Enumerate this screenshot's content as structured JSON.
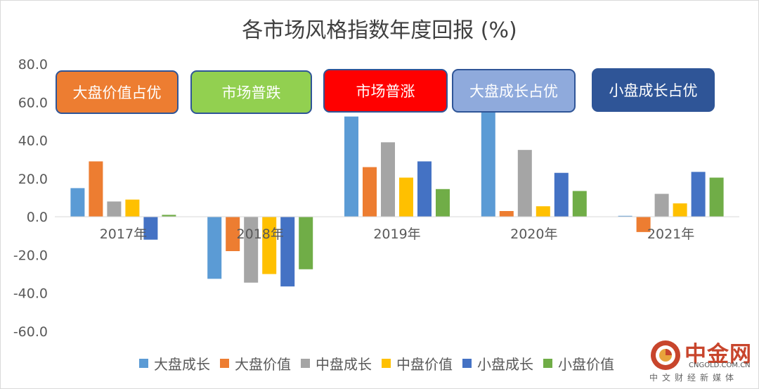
{
  "chart_data": {
    "type": "bar",
    "title": "各市场风格指数年度回报 (%)",
    "categories": [
      "2017年",
      "2018年",
      "2019年",
      "2020年",
      "2021年"
    ],
    "series": [
      {
        "name": "大盘成长",
        "color": "#5b9bd5",
        "values": [
          15.0,
          -32.5,
          52.5,
          56.0,
          0.5
        ]
      },
      {
        "name": "大盘价值",
        "color": "#ed7d31",
        "values": [
          29.0,
          -18.0,
          26.0,
          3.0,
          -8.0
        ]
      },
      {
        "name": "中盘成长",
        "color": "#a5a5a5",
        "values": [
          8.0,
          -34.5,
          39.0,
          35.0,
          12.0
        ]
      },
      {
        "name": "中盘价值",
        "color": "#ffc000",
        "values": [
          9.0,
          -30.0,
          20.5,
          5.5,
          7.0
        ]
      },
      {
        "name": "小盘成长",
        "color": "#4472c4",
        "values": [
          -12.0,
          -36.5,
          29.0,
          23.0,
          23.5
        ]
      },
      {
        "name": "小盘价值",
        "color": "#70ad47",
        "values": [
          1.0,
          -27.5,
          14.5,
          13.5,
          20.5
        ]
      }
    ],
    "yticks": [
      "80.0",
      "60.0",
      "40.0",
      "20.0",
      "0.0",
      "-20.0",
      "-40.0",
      "-60.0"
    ],
    "ylim": [
      -60,
      80
    ],
    "grid": false,
    "legend": "bottom",
    "annotations": [
      {
        "text": "大盘价值占优",
        "fill": "#ed7d31",
        "text_color": "#ffffff"
      },
      {
        "text": "市场普跌",
        "fill": "#92d050",
        "text_color": "#ffffff"
      },
      {
        "text": "市场普涨",
        "fill": "#ff0000",
        "text_color": "#ffffff"
      },
      {
        "text": "大盘成长占优",
        "fill": "#8faadc",
        "text_color": "#ffffff"
      },
      {
        "text": "小盘成长占优",
        "fill": "#2f5597",
        "text_color": "#ffffff"
      }
    ]
  },
  "watermark": {
    "name": "中金网",
    "url": "CNGOLD.COM.CN",
    "subtitle": "中文财经新媒体"
  }
}
